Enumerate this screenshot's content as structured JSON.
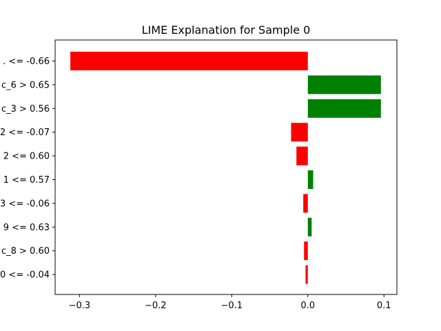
{
  "chart_data": {
    "type": "bar",
    "orientation": "horizontal",
    "title": "LIME Explanation for Sample 0",
    "xlabel": "",
    "ylabel": "",
    "xlim": [
      -0.332,
      0.117
    ],
    "x_ticks": [
      {
        "value": -0.3,
        "label": "−0.3"
      },
      {
        "value": -0.2,
        "label": "−0.2"
      },
      {
        "value": -0.1,
        "label": "−0.1"
      },
      {
        "value": 0.0,
        "label": "0.0"
      },
      {
        "value": 0.1,
        "label": "0.1"
      }
    ],
    "categories": [
      ". <= -0.66",
      "c_6 > 0.65",
      "c_3 > 0.56",
      "2 <= -0.07",
      "2 <= 0.60",
      "1 <= 0.57",
      "3 <= -0.06",
      "9 <= 0.63",
      "c_8 > 0.60",
      "0 <= -0.04"
    ],
    "values": [
      -0.312,
      0.096,
      0.096,
      -0.022,
      -0.015,
      0.007,
      -0.006,
      0.005,
      -0.005,
      -0.003
    ],
    "colors": {
      "positive": "#008000",
      "negative": "#ff0000"
    },
    "grid": false,
    "legend": "none"
  }
}
